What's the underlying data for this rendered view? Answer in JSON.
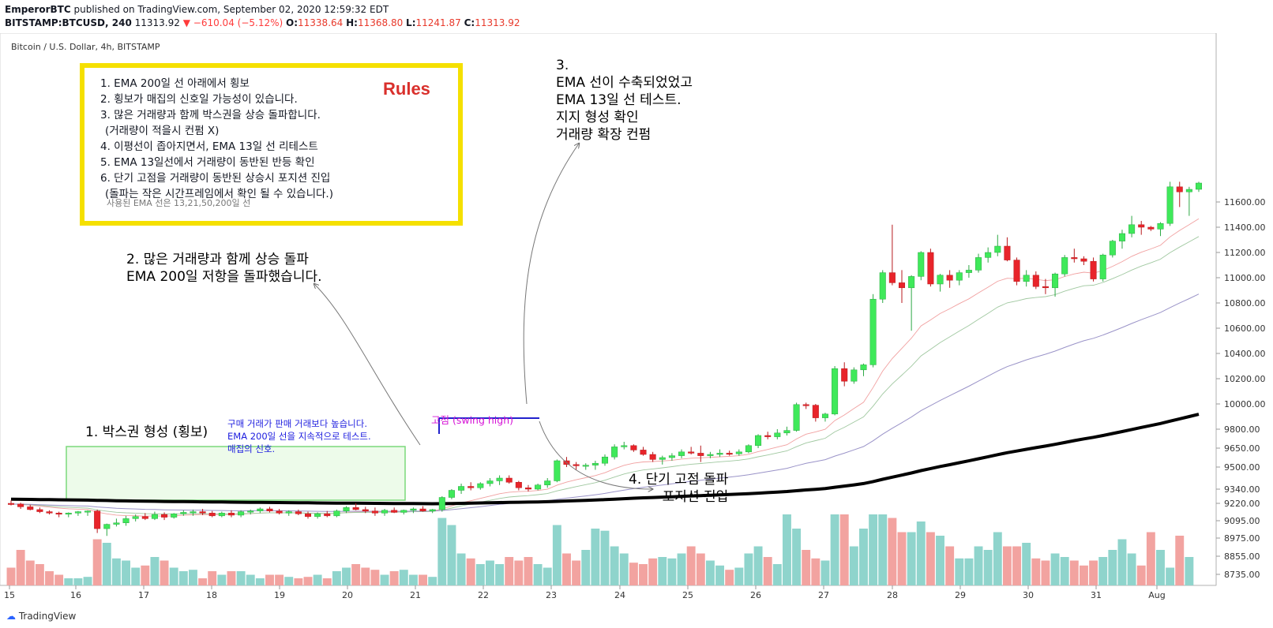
{
  "header": {
    "author": "EmperorBTC",
    "published": "published on TradingView.com, September 02, 2020 12:59:32 EDT",
    "symbol": "BITSTAMP:BTCUSD, 240",
    "price": "11313.92",
    "change": "−610.04 (−5.12%)",
    "o_label": "O:",
    "o": "11338.64",
    "h_label": "H:",
    "h": "11368.80",
    "l_label": "L:",
    "l": "11241.87",
    "c_label": "C:",
    "c": "11313.92"
  },
  "chart_title": "Bitcoin / U.S. Dollar, 4h, BITSTAMP",
  "rules": {
    "title": "Rules",
    "items": [
      "1. EMA 200일 선 아래에서 횡보",
      "2. 횡보가 매집의 신호일 가능성이 있습니다.",
      "3. 많은 거래량과 함께 박스권을 상승 돌파합니다.",
      "  (거래량이 적을시 컨펌 X)",
      "4. 이평선이 좁아지면서, EMA 13일 선 리테스트",
      "5. EMA 13일선에서 거래량이 동반된 반등 확인",
      "6. 단기 고점을 거래량이 동반된 상승시 포지션 진입",
      "  (돌파는 작은 시간프레임에서 확인 될 수 있습니다.)"
    ],
    "note": "사용된 EMA 선은 13,21,50,200일 선"
  },
  "annotations": {
    "a1": "1. 박스권 형성 (횡보)",
    "a1_blue": [
      "구매 거래가 판매 거래보다 높습니다.",
      "EMA 200일 선을 지속적으로 테스트.",
      "매집의 신호."
    ],
    "a2": [
      "2. 많은 거래량과 함께 상승 돌파",
      "EMA 200일 저항을 돌파했습니다."
    ],
    "a3": [
      "3.",
      "EMA 선이 수축되었었고",
      "EMA 13일 선 테스트.",
      "지지 형성 확인",
      "거래량 확장 컨펌"
    ],
    "a4": [
      "4. 단기 고점 돌파",
      "포지션 진입"
    ],
    "swing": "고점 (swing high)"
  },
  "logo": "TradingView",
  "colors": {
    "up": "#3fe95a",
    "down": "#e8242a",
    "vol_up": "#8fd4cc",
    "vol_down": "#f2a3a0",
    "ema200": "#000000",
    "rules_border": "#f5e000",
    "box": "#7bd97b"
  },
  "chart_data": {
    "type": "candlestick",
    "title": "Bitcoin / U.S. Dollar, 4h, BITSTAMP",
    "x_ticks": [
      "15",
      "16",
      "17",
      "18",
      "19",
      "20",
      "21",
      "22",
      "23",
      "24",
      "25",
      "26",
      "27",
      "28",
      "29",
      "30",
      "31",
      "Aug"
    ],
    "y_ticks": [
      "11600.00",
      "11400.00",
      "11200.00",
      "11000.00",
      "10800.00",
      "10600.00",
      "10400.00",
      "10200.00",
      "10000.00",
      "9800.00",
      "9650.00",
      "9500.00",
      "9340.00",
      "9220.00",
      "9095.00",
      "8975.00",
      "8855.00",
      "8735.00"
    ],
    "candles": [
      [
        9220,
        9245,
        9205,
        9215
      ],
      [
        9215,
        9225,
        9180,
        9195
      ],
      [
        9195,
        9210,
        9170,
        9175
      ],
      [
        9175,
        9190,
        9150,
        9160
      ],
      [
        9160,
        9170,
        9140,
        9150
      ],
      [
        9150,
        9160,
        9120,
        9145
      ],
      [
        9145,
        9155,
        9120,
        9150
      ],
      [
        9150,
        9165,
        9130,
        9160
      ],
      [
        9160,
        9170,
        9130,
        9165
      ],
      [
        9165,
        9175,
        9010,
        9040
      ],
      [
        9040,
        9075,
        8990,
        9070
      ],
      [
        9070,
        9110,
        9055,
        9080
      ],
      [
        9080,
        9130,
        9060,
        9110
      ],
      [
        9110,
        9140,
        9090,
        9125
      ],
      [
        9125,
        9150,
        9100,
        9110
      ],
      [
        9110,
        9160,
        9100,
        9140
      ],
      [
        9140,
        9155,
        9100,
        9120
      ],
      [
        9120,
        9150,
        9110,
        9145
      ],
      [
        9145,
        9170,
        9130,
        9155
      ],
      [
        9155,
        9175,
        9130,
        9160
      ],
      [
        9160,
        9180,
        9135,
        9150
      ],
      [
        9150,
        9165,
        9120,
        9130
      ],
      [
        9130,
        9160,
        9120,
        9150
      ],
      [
        9150,
        9170,
        9120,
        9135
      ],
      [
        9135,
        9170,
        9120,
        9160
      ],
      [
        9160,
        9175,
        9140,
        9165
      ],
      [
        9165,
        9190,
        9150,
        9180
      ],
      [
        9180,
        9195,
        9155,
        9165
      ],
      [
        9165,
        9180,
        9140,
        9150
      ],
      [
        9150,
        9170,
        9130,
        9160
      ],
      [
        9160,
        9175,
        9135,
        9145
      ],
      [
        9145,
        9160,
        9110,
        9125
      ],
      [
        9125,
        9155,
        9110,
        9145
      ],
      [
        9145,
        9165,
        9120,
        9130
      ],
      [
        9130,
        9175,
        9120,
        9165
      ],
      [
        9165,
        9200,
        9150,
        9190
      ],
      [
        9190,
        9220,
        9170,
        9175
      ],
      [
        9175,
        9195,
        9150,
        9165
      ],
      [
        9165,
        9190,
        9130,
        9150
      ],
      [
        9150,
        9180,
        9130,
        9170
      ],
      [
        9170,
        9190,
        9150,
        9155
      ],
      [
        9155,
        9175,
        9140,
        9170
      ],
      [
        9170,
        9190,
        9150,
        9180
      ],
      [
        9180,
        9200,
        9160,
        9165
      ],
      [
        9165,
        9180,
        9150,
        9175
      ],
      [
        9175,
        9280,
        9160,
        9270
      ],
      [
        9270,
        9340,
        9255,
        9330
      ],
      [
        9330,
        9380,
        9300,
        9360
      ],
      [
        9360,
        9390,
        9330,
        9350
      ],
      [
        9350,
        9390,
        9335,
        9380
      ],
      [
        9380,
        9420,
        9360,
        9400
      ],
      [
        9400,
        9440,
        9370,
        9420
      ],
      [
        9420,
        9440,
        9380,
        9390
      ],
      [
        9390,
        9400,
        9330,
        9350
      ],
      [
        9350,
        9370,
        9320,
        9340
      ],
      [
        9340,
        9380,
        9330,
        9370
      ],
      [
        9370,
        9420,
        9350,
        9400
      ],
      [
        9400,
        9560,
        9390,
        9550
      ],
      [
        9550,
        9580,
        9500,
        9520
      ],
      [
        9520,
        9540,
        9480,
        9510
      ],
      [
        9510,
        9530,
        9480,
        9515
      ],
      [
        9515,
        9550,
        9480,
        9530
      ],
      [
        9530,
        9600,
        9510,
        9580
      ],
      [
        9580,
        9680,
        9560,
        9660
      ],
      [
        9660,
        9700,
        9640,
        9670
      ],
      [
        9670,
        9680,
        9620,
        9635
      ],
      [
        9635,
        9660,
        9590,
        9600
      ],
      [
        9600,
        9620,
        9540,
        9560
      ],
      [
        9560,
        9590,
        9520,
        9575
      ],
      [
        9575,
        9610,
        9550,
        9590
      ],
      [
        9590,
        9640,
        9570,
        9620
      ],
      [
        9620,
        9660,
        9600,
        9610
      ],
      [
        9610,
        9670,
        9540,
        9590
      ],
      [
        9590,
        9620,
        9570,
        9600
      ],
      [
        9600,
        9640,
        9580,
        9610
      ],
      [
        9610,
        9630,
        9590,
        9605
      ],
      [
        9605,
        9640,
        9590,
        9620
      ],
      [
        9620,
        9680,
        9610,
        9670
      ],
      [
        9670,
        9760,
        9650,
        9750
      ],
      [
        9750,
        9780,
        9720,
        9740
      ],
      [
        9740,
        9800,
        9720,
        9770
      ],
      [
        9770,
        9820,
        9750,
        9790
      ],
      [
        9790,
        10010,
        9780,
        9995
      ],
      [
        9995,
        10010,
        9960,
        9990
      ],
      [
        9990,
        10000,
        9860,
        9890
      ],
      [
        9890,
        9930,
        9860,
        9920
      ],
      [
        9920,
        10300,
        9910,
        10280
      ],
      [
        10280,
        10330,
        10140,
        10180
      ],
      [
        10180,
        10290,
        10160,
        10270
      ],
      [
        10270,
        10320,
        10220,
        10310
      ],
      [
        10310,
        10870,
        10290,
        10830
      ],
      [
        10830,
        11060,
        10800,
        11040
      ],
      [
        11040,
        11420,
        10940,
        10960
      ],
      [
        10960,
        11060,
        10800,
        10920
      ],
      [
        10920,
        11020,
        10580,
        11010
      ],
      [
        11010,
        11210,
        10980,
        11200
      ],
      [
        11200,
        11230,
        10930,
        10950
      ],
      [
        10950,
        11030,
        10890,
        11020
      ],
      [
        11020,
        11060,
        10920,
        10980
      ],
      [
        10980,
        11060,
        10940,
        11040
      ],
      [
        11040,
        11100,
        11000,
        11060
      ],
      [
        11060,
        11190,
        11040,
        11160
      ],
      [
        11160,
        11240,
        11120,
        11200
      ],
      [
        11200,
        11340,
        11170,
        11250
      ],
      [
        11250,
        11320,
        11130,
        11140
      ],
      [
        11140,
        11160,
        10940,
        10970
      ],
      [
        10970,
        11060,
        10930,
        11020
      ],
      [
        11020,
        11050,
        10910,
        10930
      ],
      [
        10930,
        10990,
        10870,
        10920
      ],
      [
        10920,
        11040,
        10850,
        11030
      ],
      [
        11030,
        11180,
        11010,
        11160
      ],
      [
        11160,
        11230,
        11120,
        11150
      ],
      [
        11150,
        11170,
        11100,
        11130
      ],
      [
        11130,
        11160,
        10970,
        10990
      ],
      [
        10990,
        11190,
        10970,
        11180
      ],
      [
        11180,
        11300,
        11160,
        11290
      ],
      [
        11290,
        11380,
        11230,
        11350
      ],
      [
        11350,
        11490,
        11320,
        11420
      ],
      [
        11420,
        11450,
        11340,
        11400
      ],
      [
        11400,
        11410,
        11370,
        11385
      ],
      [
        11385,
        11440,
        11330,
        11430
      ],
      [
        11430,
        11760,
        11410,
        11720
      ],
      [
        11720,
        11760,
        11560,
        11680
      ],
      [
        11680,
        11720,
        11490,
        11700
      ],
      [
        11700,
        11760,
        11680,
        11750
      ]
    ],
    "volume_ratio": [
      0.25,
      0.5,
      0.35,
      0.3,
      0.2,
      0.15,
      0.1,
      0.1,
      0.12,
      0.65,
      0.6,
      0.38,
      0.35,
      0.25,
      0.28,
      0.4,
      0.35,
      0.25,
      0.2,
      0.22,
      0.1,
      0.2,
      0.15,
      0.2,
      0.2,
      0.15,
      0.1,
      0.15,
      0.15,
      0.12,
      0.1,
      0.12,
      0.15,
      0.1,
      0.2,
      0.25,
      0.3,
      0.25,
      0.22,
      0.15,
      0.2,
      0.22,
      0.15,
      0.15,
      0.12,
      0.95,
      0.85,
      0.45,
      0.38,
      0.3,
      0.35,
      0.3,
      0.4,
      0.35,
      0.4,
      0.3,
      0.25,
      0.85,
      0.45,
      0.35,
      0.5,
      0.8,
      0.77,
      0.55,
      0.45,
      0.32,
      0.3,
      0.38,
      0.4,
      0.38,
      0.45,
      0.55,
      0.45,
      0.35,
      0.28,
      0.22,
      0.25,
      0.45,
      0.55,
      0.4,
      0.3,
      1.0,
      0.8,
      0.5,
      0.38,
      0.35,
      1.0,
      1.0,
      0.55,
      0.8,
      1.0,
      1.0,
      0.95,
      0.75,
      0.75,
      0.9,
      0.75,
      0.7,
      0.55,
      0.38,
      0.38,
      0.55,
      0.5,
      0.75,
      0.55,
      0.55,
      0.6,
      0.38,
      0.35,
      0.45,
      0.4,
      0.35,
      0.28,
      0.35,
      0.4,
      0.5,
      0.65,
      0.45,
      0.28,
      0.75,
      0.5,
      0.25,
      0.7,
      0.4
    ]
  }
}
